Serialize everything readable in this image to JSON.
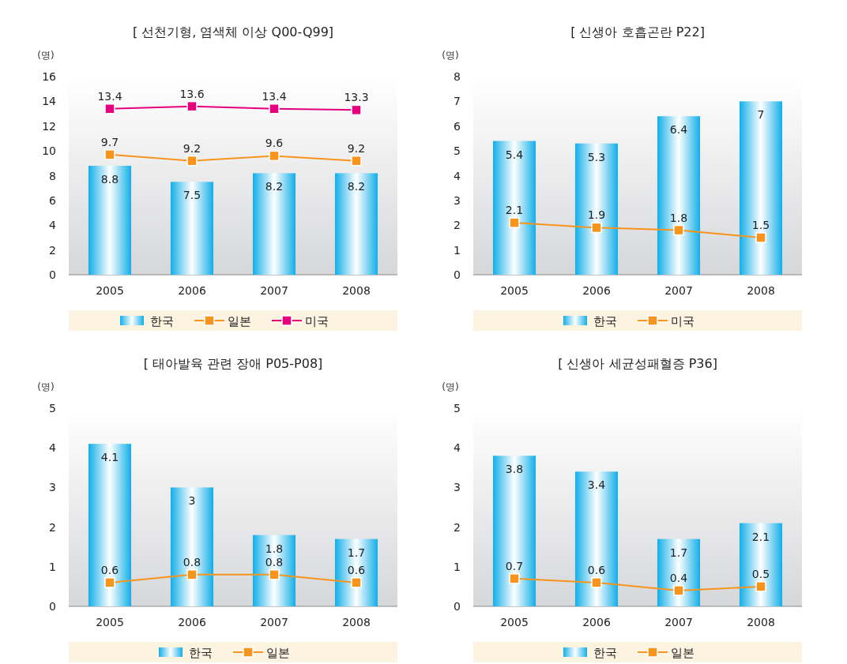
{
  "chart_data": [
    {
      "type": "bar",
      "title": "[ 선천기형, 염색체 이상 Q00-Q99]",
      "ylabel": "(명)",
      "categories": [
        "2005",
        "2006",
        "2007",
        "2008"
      ],
      "ylim": [
        0,
        16
      ],
      "yticks": [
        0,
        2,
        4,
        6,
        8,
        10,
        12,
        14,
        16
      ],
      "legend": "bottom",
      "data_labels": true,
      "marker": "square",
      "series": [
        {
          "name": "한국",
          "color": "#12aee8",
          "values": [
            8.8,
            7.5,
            8.2,
            8.2
          ]
        },
        {
          "name": "일본",
          "type": "line",
          "color": "#f7941d",
          "values": [
            9.7,
            9.2,
            9.6,
            9.2
          ]
        },
        {
          "name": "미국",
          "type": "line",
          "color": "#e6007e",
          "values": [
            13.4,
            13.6,
            13.4,
            13.3
          ]
        }
      ]
    },
    {
      "type": "bar",
      "title": "[ 신생아 호흡곤란 P22]",
      "ylabel": "(명)",
      "categories": [
        "2005",
        "2006",
        "2007",
        "2008"
      ],
      "ylim": [
        0,
        8
      ],
      "yticks": [
        0,
        1,
        2,
        3,
        4,
        5,
        6,
        7,
        8
      ],
      "legend": "bottom",
      "data_labels": true,
      "marker": "square",
      "series": [
        {
          "name": "한국",
          "color": "#12aee8",
          "values": [
            5.4,
            5.3,
            6.4,
            7
          ]
        },
        {
          "name": "미국",
          "type": "line",
          "color": "#f7941d",
          "values": [
            2.1,
            1.9,
            1.8,
            1.5
          ]
        }
      ]
    },
    {
      "type": "bar",
      "title": "[ 태아발육 관련 장애 P05-P08]",
      "ylabel": "(명)",
      "categories": [
        "2005",
        "2006",
        "2007",
        "2008"
      ],
      "ylim": [
        0,
        5
      ],
      "yticks": [
        0,
        1,
        2,
        3,
        4,
        5
      ],
      "legend": "bottom",
      "data_labels": true,
      "marker": "square",
      "series": [
        {
          "name": "한국",
          "color": "#12aee8",
          "values": [
            4.1,
            3,
            1.8,
            1.7
          ]
        },
        {
          "name": "일본",
          "type": "line",
          "color": "#f7941d",
          "values": [
            0.6,
            0.8,
            0.8,
            0.6
          ]
        }
      ]
    },
    {
      "type": "bar",
      "title": "[ 신생아 세균성패혈증 P36]",
      "ylabel": "(명)",
      "categories": [
        "2005",
        "2006",
        "2007",
        "2008"
      ],
      "ylim": [
        0,
        5
      ],
      "yticks": [
        0,
        1,
        2,
        3,
        4,
        5
      ],
      "legend": "bottom",
      "data_labels": true,
      "marker": "square",
      "series": [
        {
          "name": "한국",
          "color": "#12aee8",
          "values": [
            3.8,
            3.4,
            1.7,
            2.1
          ]
        },
        {
          "name": "일본",
          "type": "line",
          "color": "#f7941d",
          "values": [
            0.7,
            0.6,
            0.4,
            0.5
          ]
        }
      ]
    }
  ]
}
